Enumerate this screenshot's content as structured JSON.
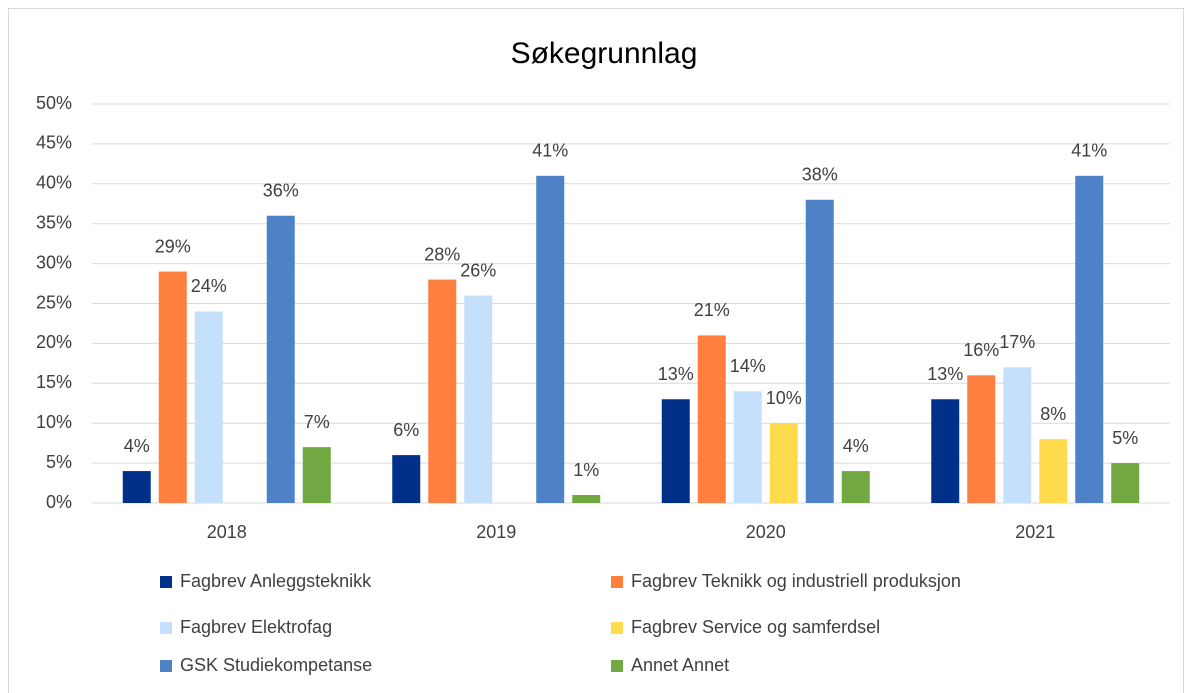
{
  "chart_data": {
    "type": "bar",
    "title": "Søkegrunnlag",
    "categories": [
      "2018",
      "2019",
      "2020",
      "2021"
    ],
    "series": [
      {
        "name": "Fagbrev Anleggsteknikk",
        "color": "#003087",
        "values": [
          4,
          6,
          13,
          13
        ],
        "value_labels": [
          "4%",
          "6%",
          "13%",
          "13%"
        ]
      },
      {
        "name": "Fagbrev Teknikk og industriell produksjon",
        "color": "#ff7f3f",
        "values": [
          29,
          28,
          21,
          16
        ],
        "value_labels": [
          "29%",
          "28%",
          "21%",
          "16%"
        ]
      },
      {
        "name": "Fagbrev Elektrofag",
        "color": "#c5e0fb",
        "values": [
          24,
          26,
          14,
          17
        ],
        "value_labels": [
          "24%",
          "26%",
          "14%",
          "17%"
        ]
      },
      {
        "name": "Fagbrev Service og samferdsel",
        "color": "#ffdb4d",
        "values": [
          null,
          null,
          10,
          8
        ],
        "value_labels": [
          null,
          null,
          "10%",
          "8%"
        ]
      },
      {
        "name": "GSK Studiekompetanse",
        "color": "#4f81c7",
        "values": [
          36,
          41,
          38,
          41
        ],
        "value_labels": [
          "36%",
          "41%",
          "38%",
          "41%"
        ]
      },
      {
        "name": "Annet Annet",
        "color": "#72a842",
        "values": [
          7,
          1,
          4,
          5
        ],
        "value_labels": [
          "7%",
          "1%",
          "4%",
          "5%"
        ]
      }
    ],
    "ylim": [
      0,
      50
    ],
    "yticks": [
      {
        "value": 0,
        "label": "0%"
      },
      {
        "value": 5,
        "label": "5%"
      },
      {
        "value": 10,
        "label": "10%"
      },
      {
        "value": 15,
        "label": "15%"
      },
      {
        "value": 20,
        "label": "20%"
      },
      {
        "value": 25,
        "label": "25%"
      },
      {
        "value": 30,
        "label": "30%"
      },
      {
        "value": 35,
        "label": "35%"
      },
      {
        "value": 40,
        "label": "40%"
      },
      {
        "value": 45,
        "label": "45%"
      },
      {
        "value": 50,
        "label": "50%"
      }
    ],
    "grid": true,
    "legend": "bottom"
  }
}
